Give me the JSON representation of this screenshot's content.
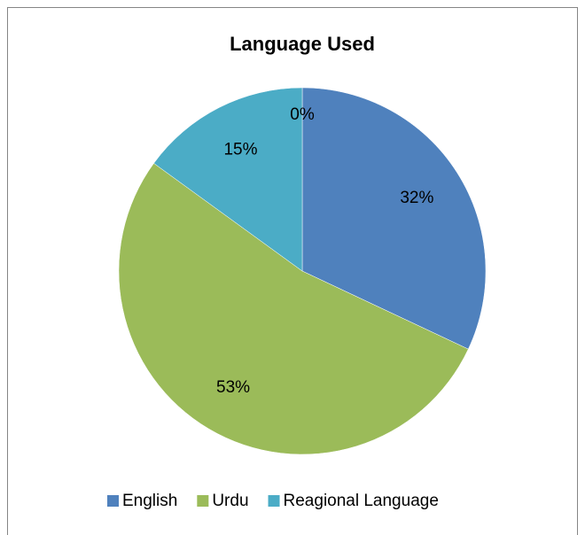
{
  "chart_data": {
    "type": "pie",
    "title": "Language Used",
    "categories": [
      "English",
      "Urdu",
      "Reagional Language",
      null
    ],
    "values": [
      32,
      53,
      15,
      0
    ],
    "value_labels": [
      "32%",
      "53%",
      "15%",
      "0%"
    ],
    "colors": [
      "#4f81bd",
      "#9bbb59",
      "#4bacc6",
      "#1f497d"
    ],
    "legend": "bottom"
  }
}
